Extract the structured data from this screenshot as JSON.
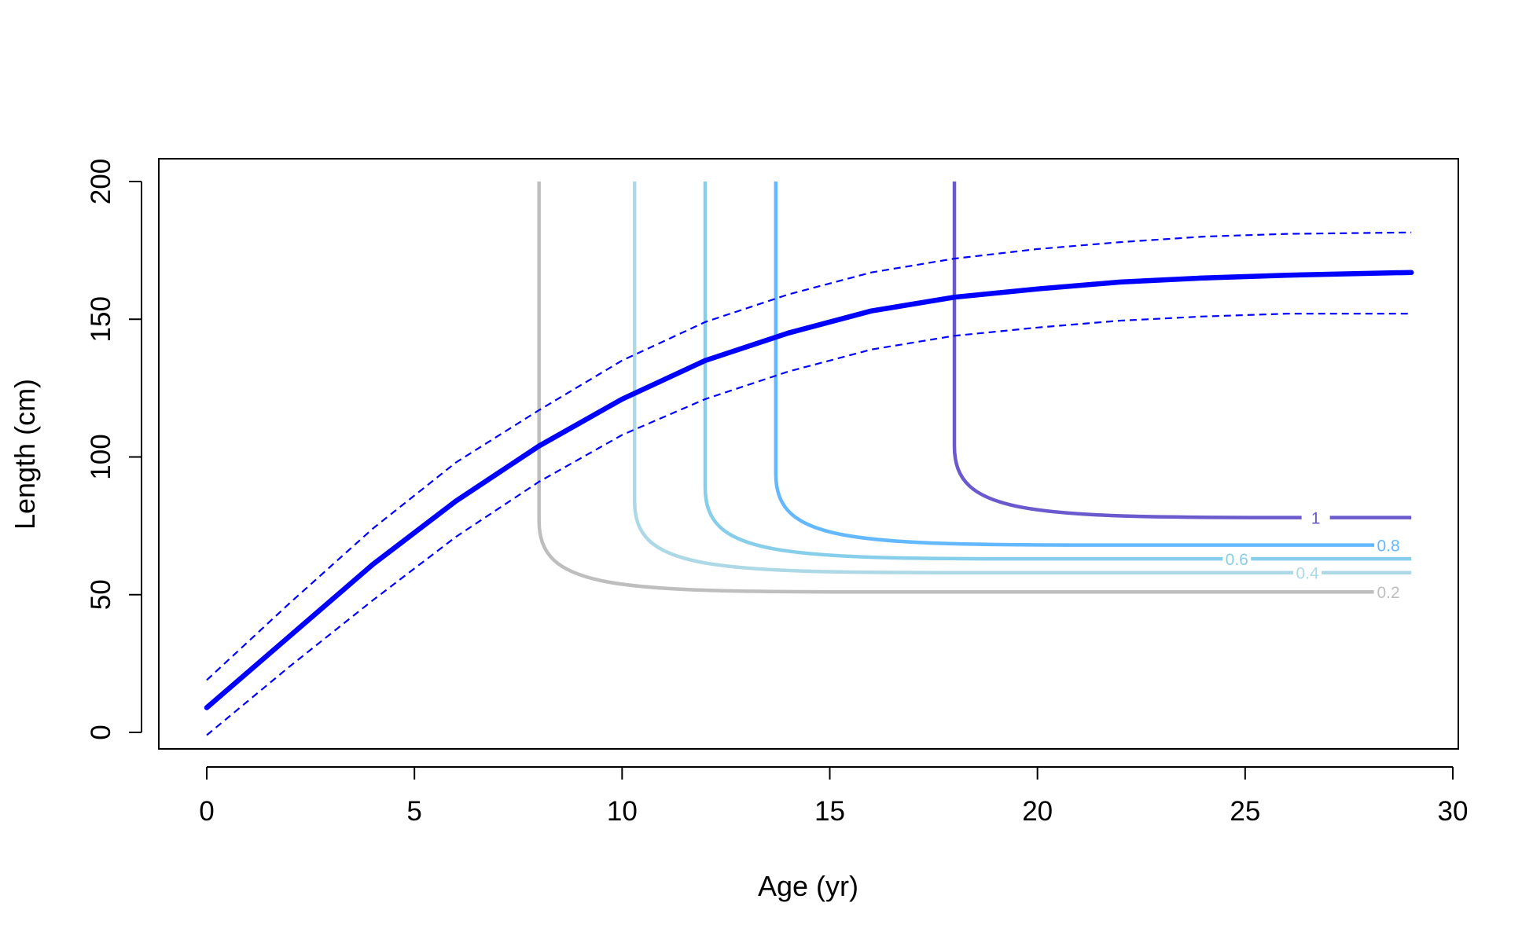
{
  "chart_data": {
    "type": "line",
    "title": "",
    "xlabel": "Age (yr)",
    "ylabel": "Length (cm)",
    "xlim": [
      0,
      30
    ],
    "ylim": [
      0,
      200
    ],
    "xticks": [
      "0",
      "5",
      "10",
      "15",
      "20",
      "25",
      "30"
    ],
    "yticks": [
      "0",
      "50",
      "100",
      "150",
      "200"
    ],
    "grid": false,
    "legend": "none",
    "growth_curve": {
      "color": "#0000FF",
      "x": [
        0,
        2,
        4,
        6,
        8,
        10,
        12,
        14,
        16,
        18,
        20,
        22,
        24,
        26,
        29
      ],
      "mean": [
        9,
        35,
        61,
        84,
        104,
        121,
        135,
        145,
        153,
        158,
        161,
        163.5,
        165,
        166,
        167
      ],
      "upper": [
        19,
        47,
        74,
        98,
        117,
        135,
        149,
        159,
        167,
        172,
        175.5,
        178,
        180,
        181,
        181.5
      ],
      "lower": [
        -1,
        24,
        48,
        71,
        91,
        108,
        121,
        131,
        139,
        144,
        147,
        149.5,
        151,
        152,
        152
      ]
    },
    "selectivity_contours": [
      {
        "label": "0.2",
        "color": "#BEBEBE",
        "age": 8.0,
        "min_length": 51,
        "end_age": 28.1
      },
      {
        "label": "0.4",
        "color": "#ADD8E6",
        "age": 10.3,
        "min_length": 58,
        "end_age": 29.0
      },
      {
        "label": "0.6",
        "color": "#87CEEB",
        "age": 12.0,
        "min_length": 63,
        "end_age": 29.0
      },
      {
        "label": "0.8",
        "color": "#63B8FF",
        "age": 13.7,
        "min_length": 68,
        "end_age": 28.2
      },
      {
        "label": "1",
        "color": "#6A5ACD",
        "age": 18.0,
        "min_length": 78,
        "end_age": 29.0
      }
    ]
  }
}
